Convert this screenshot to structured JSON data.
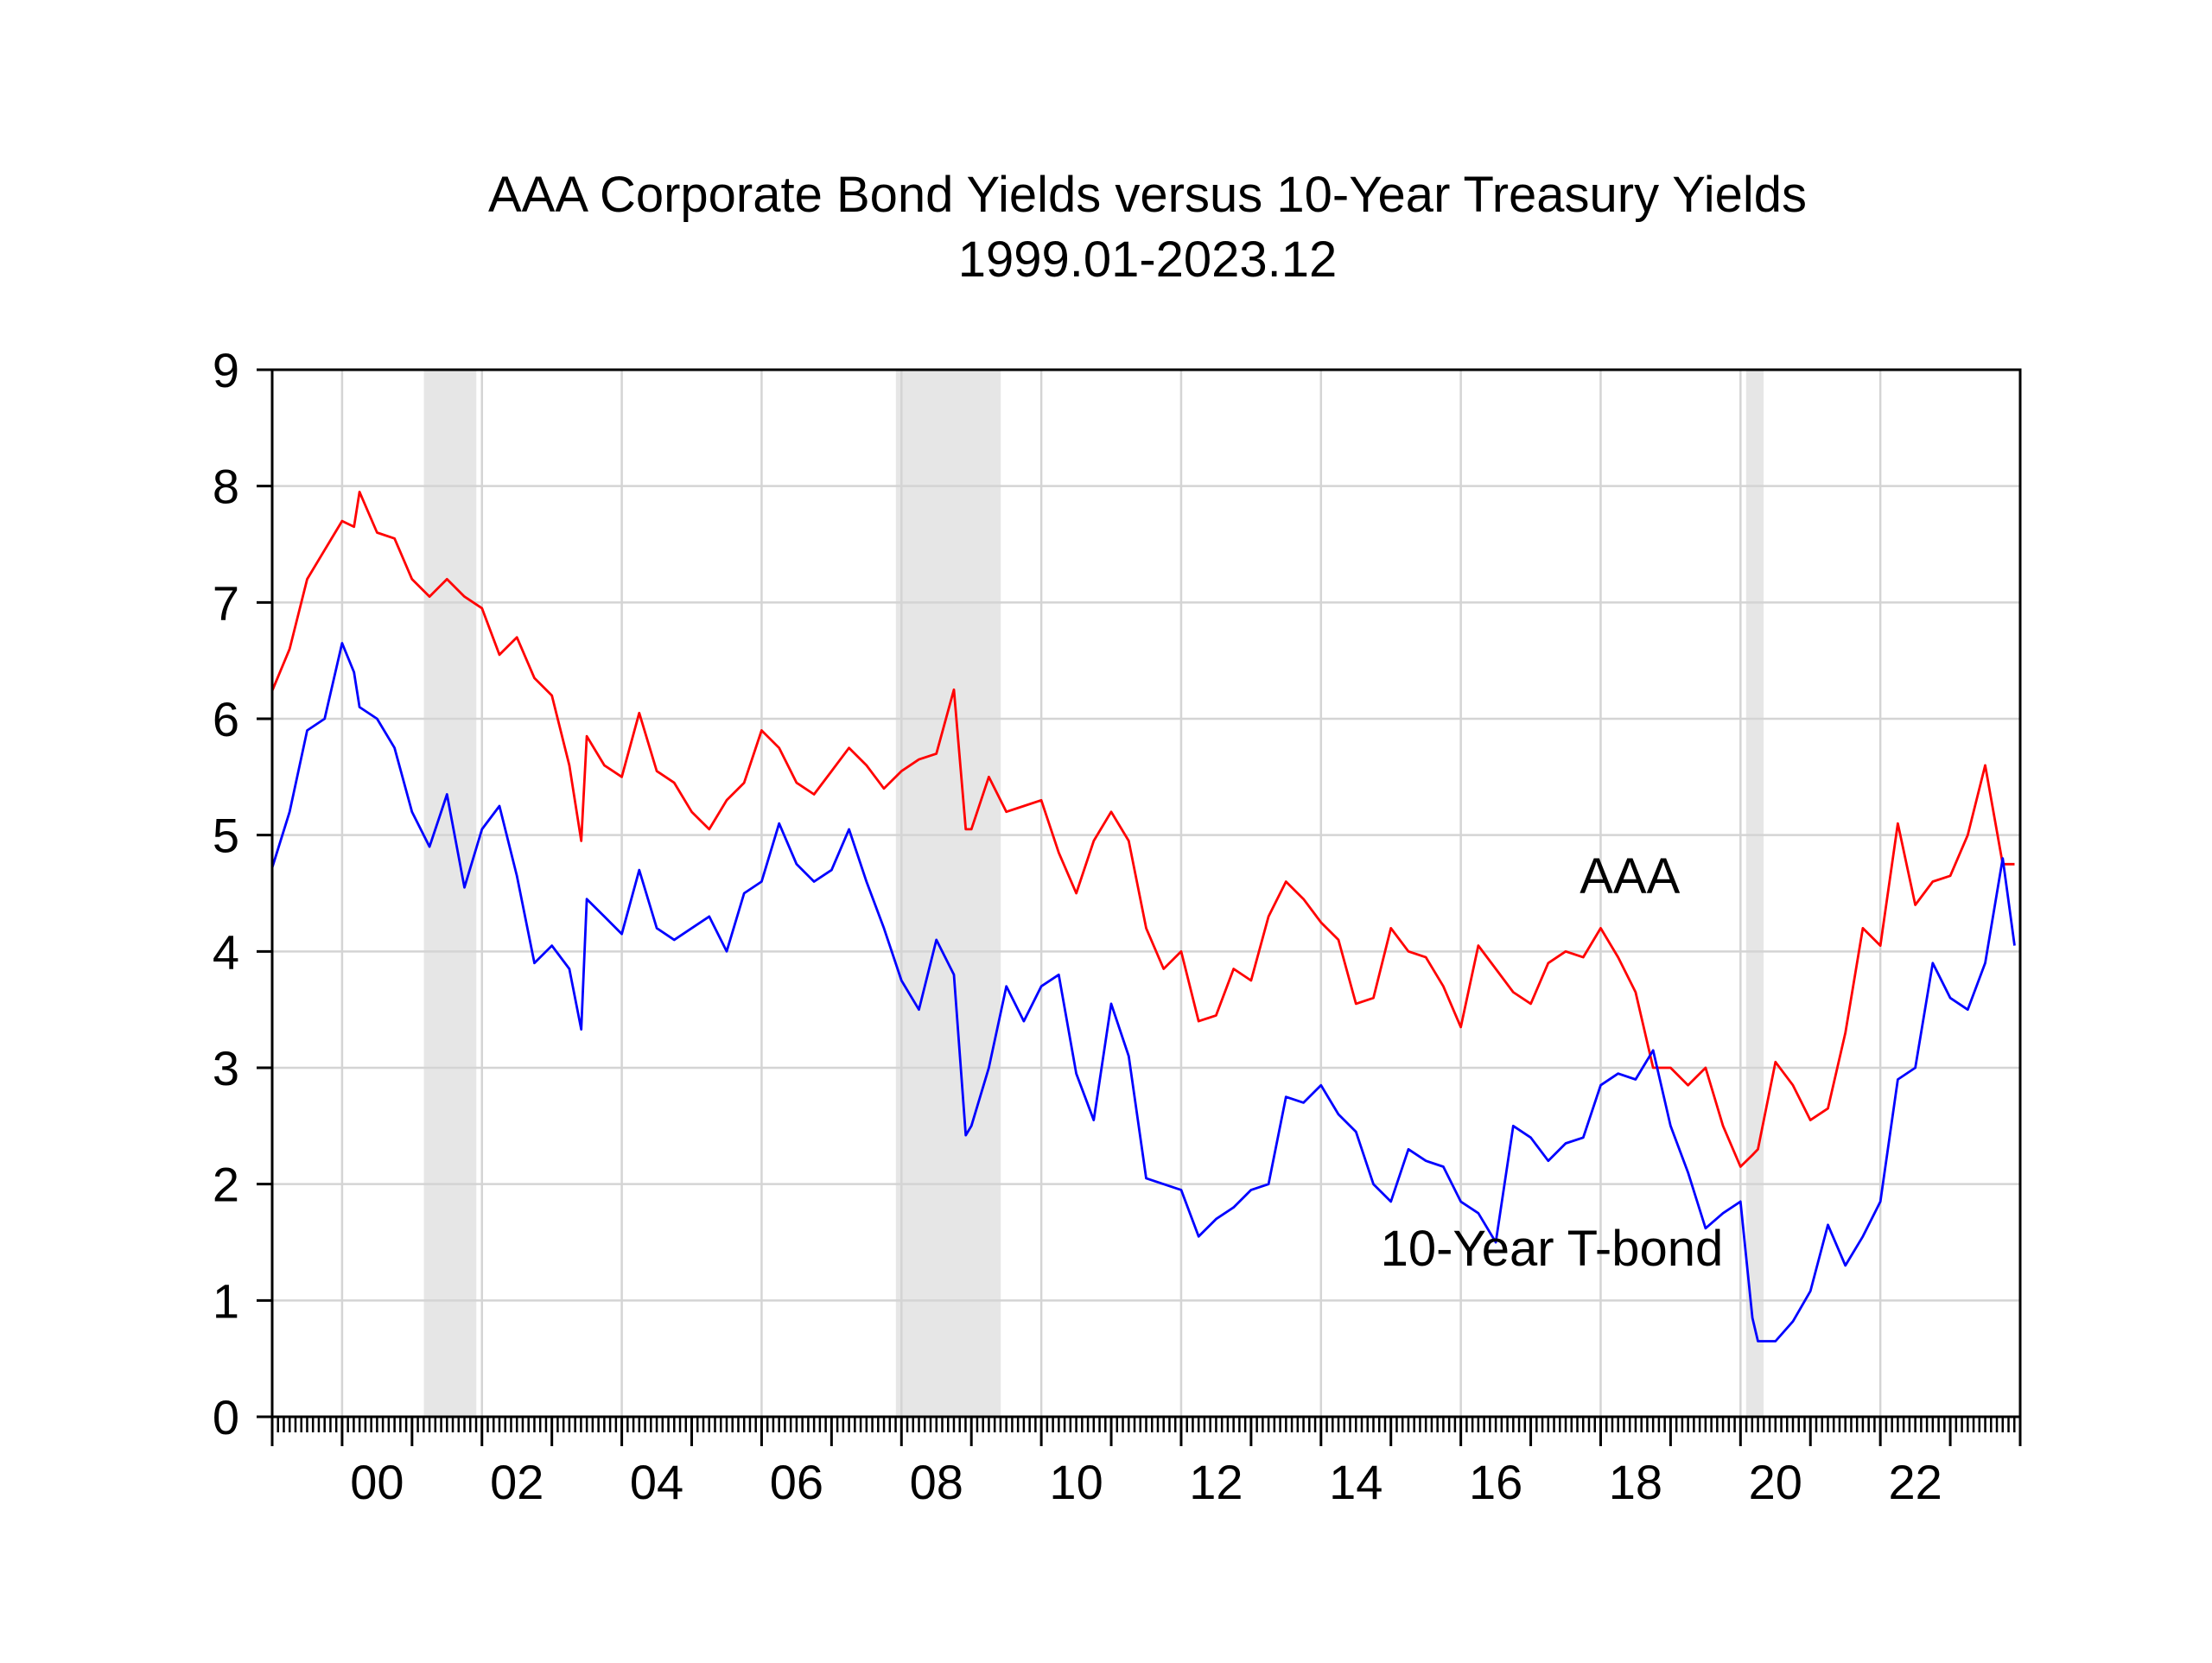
{
  "chart_data": {
    "type": "line",
    "title": "AAA Corporate Bond Yields versus 10-Year Treasury Yields",
    "subtitle": "1999.01-2023.12",
    "xlabel": "",
    "ylabel": "",
    "ylim": [
      0,
      9
    ],
    "xlim": [
      1999.0,
      2024.0
    ],
    "grid": true,
    "legend": "none",
    "y_ticks": [
      0,
      1,
      2,
      3,
      4,
      5,
      6,
      7,
      8,
      9
    ],
    "x_ticks": [
      {
        "value": 2000,
        "label": "00"
      },
      {
        "value": 2002,
        "label": "02"
      },
      {
        "value": 2004,
        "label": "04"
      },
      {
        "value": 2006,
        "label": "06"
      },
      {
        "value": 2008,
        "label": "08"
      },
      {
        "value": 2010,
        "label": "10"
      },
      {
        "value": 2012,
        "label": "12"
      },
      {
        "value": 2014,
        "label": "14"
      },
      {
        "value": 2016,
        "label": "16"
      },
      {
        "value": 2018,
        "label": "18"
      },
      {
        "value": 2020,
        "label": "20"
      },
      {
        "value": 2022,
        "label": "22"
      }
    ],
    "shaded_periods": [
      {
        "start": 2001.17,
        "end": 2001.92
      },
      {
        "start": 2007.92,
        "end": 2009.42
      },
      {
        "start": 2020.08,
        "end": 2020.33
      }
    ],
    "series": [
      {
        "name": "AAA",
        "color": "#ff0000",
        "x": [
          1999.0,
          1999.25,
          1999.5,
          1999.75,
          2000.0,
          2000.17,
          2000.25,
          2000.5,
          2000.75,
          2001.0,
          2001.25,
          2001.5,
          2001.75,
          2002.0,
          2002.25,
          2002.5,
          2002.75,
          2003.0,
          2003.25,
          2003.42,
          2003.5,
          2003.75,
          2004.0,
          2004.25,
          2004.5,
          2004.75,
          2005.0,
          2005.25,
          2005.5,
          2005.75,
          2006.0,
          2006.25,
          2006.5,
          2006.75,
          2007.0,
          2007.25,
          2007.5,
          2007.75,
          2008.0,
          2008.25,
          2008.5,
          2008.75,
          2008.92,
          2009.0,
          2009.25,
          2009.5,
          2009.75,
          2010.0,
          2010.25,
          2010.5,
          2010.75,
          2011.0,
          2011.25,
          2011.5,
          2011.75,
          2012.0,
          2012.25,
          2012.5,
          2012.75,
          2013.0,
          2013.25,
          2013.5,
          2013.75,
          2014.0,
          2014.25,
          2014.5,
          2014.75,
          2015.0,
          2015.25,
          2015.5,
          2015.75,
          2016.0,
          2016.25,
          2016.5,
          2016.75,
          2017.0,
          2017.25,
          2017.5,
          2017.75,
          2018.0,
          2018.25,
          2018.5,
          2018.75,
          2019.0,
          2019.25,
          2019.5,
          2019.75,
          2020.0,
          2020.17,
          2020.25,
          2020.5,
          2020.75,
          2021.0,
          2021.25,
          2021.5,
          2021.75,
          2022.0,
          2022.25,
          2022.5,
          2022.75,
          2023.0,
          2023.25,
          2023.5,
          2023.75,
          2023.92
        ],
        "values": [
          6.24,
          6.6,
          7.2,
          7.45,
          7.7,
          7.65,
          7.95,
          7.6,
          7.55,
          7.2,
          7.05,
          7.2,
          7.05,
          6.95,
          6.55,
          6.7,
          6.35,
          6.2,
          5.6,
          4.95,
          5.85,
          5.6,
          5.5,
          6.05,
          5.55,
          5.45,
          5.2,
          5.05,
          5.3,
          5.45,
          5.9,
          5.75,
          5.45,
          5.35,
          5.55,
          5.75,
          5.6,
          5.4,
          5.55,
          5.65,
          5.7,
          6.25,
          5.05,
          5.05,
          5.5,
          5.2,
          5.25,
          5.3,
          4.85,
          4.5,
          4.95,
          5.2,
          4.95,
          4.2,
          3.85,
          4.0,
          3.4,
          3.45,
          3.85,
          3.75,
          4.3,
          4.6,
          4.45,
          4.25,
          4.1,
          3.55,
          3.6,
          4.2,
          4.0,
          3.95,
          3.7,
          3.35,
          4.05,
          3.85,
          3.65,
          3.55,
          3.9,
          4.0,
          3.95,
          4.2,
          3.95,
          3.65,
          3.0,
          3.0,
          2.85,
          3.0,
          2.5,
          2.15,
          2.25,
          2.3,
          3.05,
          2.85,
          2.55,
          2.65,
          3.3,
          4.2,
          4.05,
          5.1,
          4.4,
          4.6,
          4.65,
          5.0,
          5.6,
          4.75,
          4.75
        ]
      },
      {
        "name": "10-Year T-bond",
        "color": "#0000ff",
        "x": [
          1999.0,
          1999.25,
          1999.5,
          1999.75,
          2000.0,
          2000.17,
          2000.25,
          2000.5,
          2000.75,
          2001.0,
          2001.25,
          2001.5,
          2001.75,
          2002.0,
          2002.25,
          2002.5,
          2002.75,
          2003.0,
          2003.25,
          2003.42,
          2003.5,
          2003.75,
          2004.0,
          2004.25,
          2004.5,
          2004.75,
          2005.0,
          2005.25,
          2005.5,
          2005.75,
          2006.0,
          2006.25,
          2006.5,
          2006.75,
          2007.0,
          2007.25,
          2007.5,
          2007.75,
          2008.0,
          2008.25,
          2008.5,
          2008.75,
          2008.92,
          2009.0,
          2009.25,
          2009.5,
          2009.75,
          2010.0,
          2010.25,
          2010.5,
          2010.75,
          2011.0,
          2011.25,
          2011.5,
          2011.75,
          2012.0,
          2012.25,
          2012.5,
          2012.75,
          2013.0,
          2013.25,
          2013.5,
          2013.75,
          2014.0,
          2014.25,
          2014.5,
          2014.75,
          2015.0,
          2015.25,
          2015.5,
          2015.75,
          2016.0,
          2016.25,
          2016.5,
          2016.75,
          2017.0,
          2017.25,
          2017.5,
          2017.75,
          2018.0,
          2018.25,
          2018.5,
          2018.75,
          2019.0,
          2019.25,
          2019.5,
          2019.75,
          2020.0,
          2020.17,
          2020.25,
          2020.5,
          2020.75,
          2021.0,
          2021.25,
          2021.5,
          2021.75,
          2022.0,
          2022.25,
          2022.5,
          2022.75,
          2023.0,
          2023.25,
          2023.5,
          2023.75,
          2023.92
        ],
        "values": [
          4.72,
          5.2,
          5.9,
          6.0,
          6.65,
          6.4,
          6.1,
          6.0,
          5.75,
          5.2,
          4.9,
          5.35,
          4.55,
          5.05,
          5.25,
          4.65,
          3.9,
          4.05,
          3.85,
          3.33,
          4.45,
          4.3,
          4.15,
          4.7,
          4.2,
          4.1,
          4.2,
          4.3,
          4.0,
          4.5,
          4.6,
          5.1,
          4.75,
          4.6,
          4.7,
          5.05,
          4.6,
          4.2,
          3.75,
          3.5,
          4.1,
          3.8,
          2.42,
          2.5,
          3.0,
          3.7,
          3.4,
          3.7,
          3.8,
          2.95,
          2.55,
          3.55,
          3.1,
          2.05,
          2.0,
          1.95,
          1.55,
          1.7,
          1.8,
          1.95,
          2.0,
          2.75,
          2.7,
          2.85,
          2.6,
          2.45,
          2.0,
          1.85,
          2.3,
          2.2,
          2.15,
          1.85,
          1.75,
          1.5,
          2.5,
          2.4,
          2.2,
          2.35,
          2.4,
          2.85,
          2.95,
          2.9,
          3.15,
          2.5,
          2.1,
          1.62,
          1.75,
          1.85,
          0.85,
          0.65,
          0.65,
          0.82,
          1.08,
          1.65,
          1.3,
          1.55,
          1.85,
          2.9,
          3.0,
          3.9,
          3.6,
          3.5,
          3.9,
          4.8,
          4.05
        ]
      }
    ],
    "annotations": [
      {
        "text": "AAA",
        "x": 2017.7,
        "y": 4.5
      },
      {
        "text": "10-Year T-bond",
        "x": 2014.85,
        "y": 1.3
      }
    ]
  }
}
